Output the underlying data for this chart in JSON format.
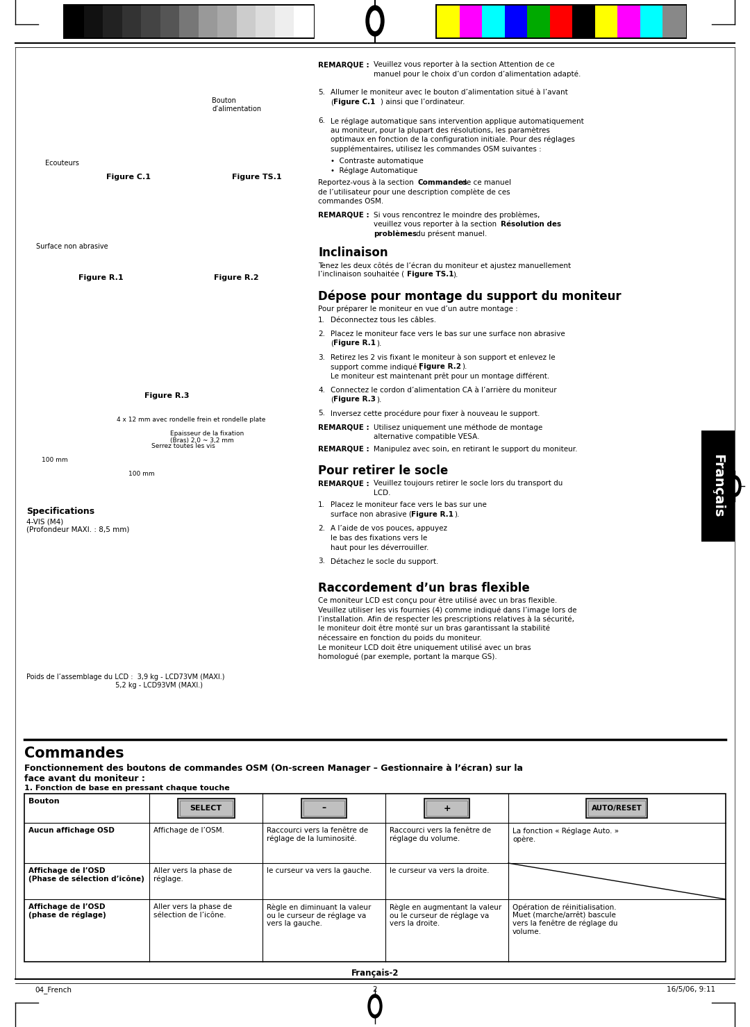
{
  "page_bg": "#ffffff",
  "header_bar_colors_bw": [
    "#000000",
    "#111111",
    "#222222",
    "#333333",
    "#444444",
    "#555555",
    "#777777",
    "#999999",
    "#aaaaaa",
    "#cccccc",
    "#dddddd",
    "#eeeeee",
    "#ffffff"
  ],
  "header_bar_colors_color": [
    "#ffff00",
    "#ff00ff",
    "#00ffff",
    "#0000ff",
    "#00aa00",
    "#ff0000",
    "#000000",
    "#ffff00",
    "#ff00ff",
    "#00ffff",
    "#888888"
  ],
  "footer_text_left": "04_French",
  "footer_text_center": "2",
  "footer_text_right": "16/5/06, 9:11",
  "section_title": "Commandes",
  "section_subtitle": "Fonctionnement des boutons de commandes OSM (On-screen Manager – Gestionnaire à l’écran) sur la\nface avant du moniteur :",
  "subsection_title": "1. Fonction de base en pressant chaque touche",
  "table_row1_col0": "Aucun affichage OSD",
  "table_row1_col1": "Affichage de l’OSM.",
  "table_row1_col2": "Raccourci vers la fenêtre de\nréglage de la luminosité.",
  "table_row1_col3": "Raccourci vers la fenêtre de\nréglage du volume.",
  "table_row1_col4": "La fonction « Réglage Auto. »\nopère.",
  "table_row2_col0": "Affichage de l’OSD\n(Phase de sélection d’icône)",
  "table_row2_col1": "Aller vers la phase de\nréglage.",
  "table_row2_col2": "le curseur va vers la gauche.",
  "table_row2_col3": "le curseur va vers la droite.",
  "table_row2_col4": "",
  "table_row3_col0": "Affichage de l’OSD\n(phase de réglage)",
  "table_row3_col1": "Aller vers la phase de\nsélection de l’icône.",
  "table_row3_col2": "Règle en diminuant la valeur\nou le curseur de réglage va\nvers la gauche.",
  "table_row3_col3": "Règle en augmentant la valeur\nou le curseur de réglage va\nvers la droite.",
  "table_row3_col4": "Opération de réinitialisation.\nMuet (marche/arrêt) bascule\nvers la fenêtre de réglage du\nvolume.",
  "bottom_center_text": "Français-2",
  "right_side_label": "Français",
  "fig_c1": "Figure C.1",
  "fig_ts1": "Figure TS.1",
  "fig_r1": "Figure R.1",
  "fig_r2": "Figure R.2",
  "fig_r3": "Figure R.3",
  "label_bouton": "Bouton\nd’alimentation",
  "label_ecouteurs": "Ecouteurs",
  "label_surface": "Surface non abrasive",
  "specs_title": "Specifications",
  "specs_text": "4-VIS (M4)\n(Profondeur MAXI. : 8,5 mm)",
  "ann0": "4 x 12 mm avec rondelle frein et rondelle plate",
  "ann1": "Epaisseur de la fixation\n(Bras) 2,0 ~ 3,2 mm",
  "ann2": "Serrez toutes les vis",
  "ann3": "100 mm",
  "ann4": "100 mm",
  "poids_text": "Poids de l’assemblage du LCD :  3,9 kg - LCD73VM (MAXI.)\n                                         5,2 kg - LCD93VM (MAXI.)",
  "right_tab_color": "#000000",
  "right_tab_text_color": "#ffffff"
}
